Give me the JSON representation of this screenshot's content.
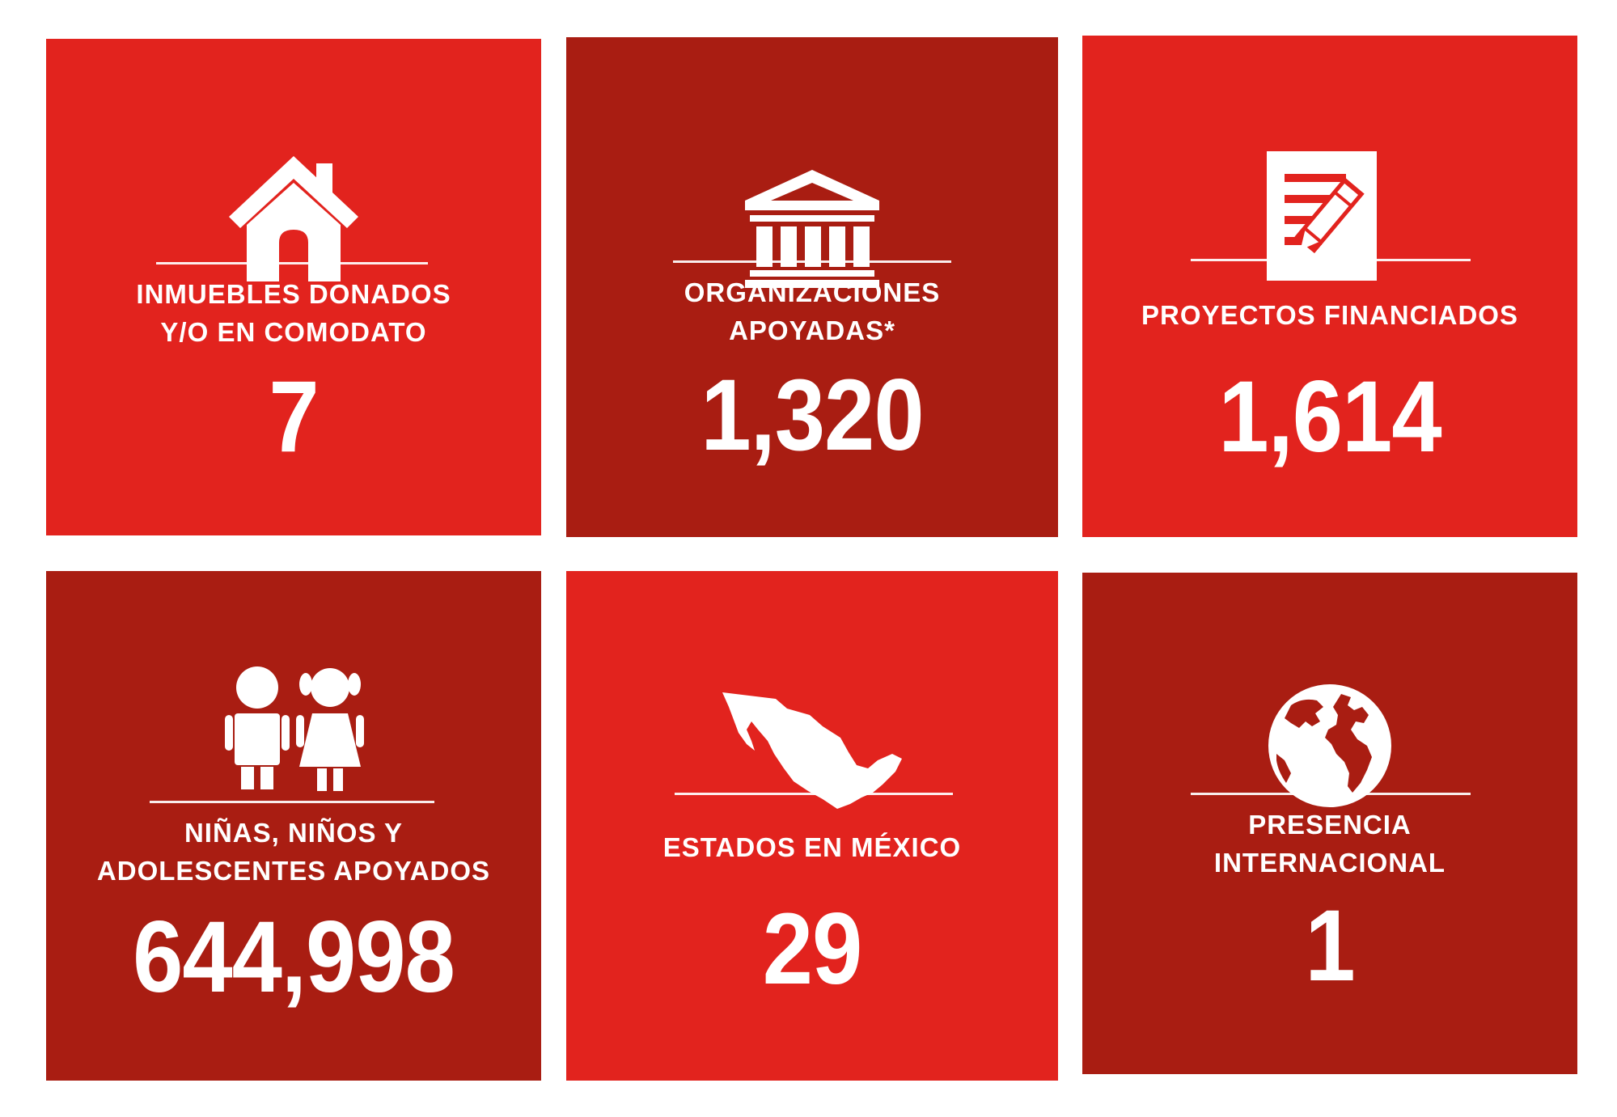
{
  "colors": {
    "bright_red": "#e2231e",
    "dark_red": "#a91d12",
    "text": "#ffffff",
    "background": "#ffffff"
  },
  "stats": [
    {
      "icon": "house-icon",
      "label_lines": [
        "INMUEBLES DONADOS",
        "Y/O EN COMODATO"
      ],
      "value": "7"
    },
    {
      "icon": "bank-building-icon",
      "label_lines": [
        "ORGANIZACIONES",
        "APOYADAS*"
      ],
      "value": "1,320"
    },
    {
      "icon": "document-pencil-icon",
      "label_lines": [
        "PROYECTOS FINANCIADOS"
      ],
      "value": "1,614"
    },
    {
      "icon": "children-icon",
      "label_lines": [
        "NIÑAS, NIÑOS Y",
        "ADOLESCENTES APOYADOS"
      ],
      "value": "644,998"
    },
    {
      "icon": "mexico-map-icon",
      "label_lines": [
        "ESTADOS EN MÉXICO"
      ],
      "value": "29"
    },
    {
      "icon": "globe-icon",
      "label_lines": [
        "PRESENCIA",
        "INTERNACIONAL"
      ],
      "value": "1"
    }
  ]
}
